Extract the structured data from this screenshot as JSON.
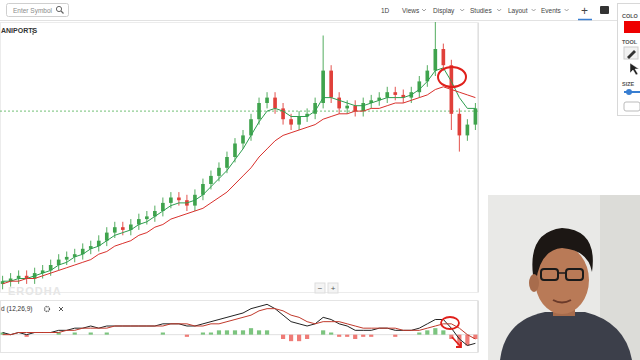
{
  "toolbar": {
    "search_placeholder": "Enter Symbol",
    "items": [
      "1D",
      "Views",
      "Display",
      "Studies",
      "Layout",
      "Events",
      "+"
    ]
  },
  "drawing_panel": {
    "labels": [
      "COLO",
      "TOOL",
      "SIZE"
    ]
  },
  "zoom_controls": [
    "−",
    "+"
  ],
  "chart_data": [
    {
      "type": "candlestick",
      "title": "ANIPORTS",
      "watermark": "ERODHA",
      "ylim": [
        0,
        100
      ],
      "tick_labels": false,
      "price_line": 67,
      "open": [
        3,
        4,
        5,
        6,
        5,
        7,
        8,
        10,
        12,
        13,
        14,
        16,
        17,
        19,
        22,
        24,
        23,
        25,
        27,
        28,
        30,
        33,
        35,
        34,
        32,
        36,
        40,
        43,
        46,
        50,
        55,
        58,
        64,
        70,
        72,
        68,
        64,
        62,
        65,
        66,
        70,
        82,
        72,
        68,
        69,
        67,
        70,
        71,
        72,
        74,
        73,
        72,
        74,
        78,
        82,
        90,
        84,
        66,
        58,
        62
      ],
      "high": [
        6,
        7,
        8,
        8,
        9,
        10,
        12,
        14,
        15,
        16,
        18,
        19,
        21,
        24,
        26,
        26,
        27,
        29,
        30,
        32,
        35,
        37,
        37,
        36,
        38,
        42,
        45,
        48,
        52,
        57,
        60,
        66,
        72,
        74,
        74,
        70,
        66,
        67,
        68,
        72,
        95,
        84,
        74,
        71,
        71,
        72,
        73,
        74,
        76,
        76,
        75,
        76,
        80,
        84,
        100,
        92,
        86,
        68,
        64,
        70
      ],
      "low": [
        1,
        2,
        3,
        3,
        3,
        5,
        6,
        8,
        10,
        11,
        12,
        14,
        15,
        17,
        20,
        21,
        21,
        23,
        25,
        26,
        28,
        31,
        32,
        30,
        30,
        34,
        38,
        41,
        44,
        48,
        53,
        56,
        62,
        68,
        66,
        62,
        60,
        60,
        63,
        64,
        68,
        70,
        66,
        66,
        65,
        65,
        68,
        69,
        70,
        71,
        70,
        70,
        72,
        76,
        80,
        82,
        60,
        52,
        56,
        60
      ],
      "close": [
        4,
        5,
        6,
        5,
        7,
        8,
        10,
        12,
        13,
        14,
        16,
        17,
        19,
        22,
        24,
        23,
        25,
        27,
        28,
        30,
        33,
        35,
        34,
        32,
        36,
        40,
        43,
        46,
        50,
        55,
        58,
        64,
        70,
        72,
        68,
        64,
        62,
        65,
        66,
        70,
        82,
        72,
        68,
        69,
        67,
        70,
        71,
        72,
        74,
        73,
        72,
        74,
        78,
        82,
        90,
        84,
        66,
        58,
        62,
        68
      ],
      "series": [
        {
          "type": "line",
          "color": "#2e9e4f",
          "values": [
            4,
            4,
            5,
            5,
            6,
            7,
            8,
            10,
            11,
            13,
            14,
            16,
            17,
            19,
            21,
            22,
            23,
            25,
            26,
            28,
            30,
            32,
            33,
            33,
            34,
            36,
            39,
            42,
            45,
            49,
            53,
            58,
            63,
            67,
            68,
            67,
            65,
            65,
            65,
            67,
            72,
            72,
            71,
            70,
            69,
            69,
            70,
            71,
            72,
            72,
            72,
            73,
            75,
            78,
            82,
            83,
            78,
            72,
            68,
            68
          ]
        },
        {
          "type": "line",
          "color": "#d9302c",
          "values": [
            3,
            4,
            4,
            5,
            5,
            6,
            7,
            8,
            9,
            10,
            11,
            12,
            14,
            15,
            17,
            18,
            19,
            21,
            22,
            24,
            25,
            27,
            28,
            29,
            30,
            31,
            33,
            35,
            37,
            40,
            43,
            46,
            50,
            53,
            56,
            58,
            59,
            60,
            61,
            62,
            64,
            65,
            66,
            66,
            67,
            67,
            68,
            68,
            69,
            70,
            70,
            71,
            72,
            73,
            75,
            76,
            75,
            74,
            73,
            72
          ]
        }
      ]
    },
    {
      "type": "macd",
      "title": "d (12,26,9)",
      "ylim": [
        -8,
        16
      ],
      "tick_labels": false,
      "series": [
        {
          "type": "line",
          "color": "#222222",
          "values": [
            1,
            0,
            1,
            0,
            1,
            1,
            1,
            2,
            2,
            3,
            3,
            4,
            3,
            4,
            4,
            4,
            4,
            4,
            4,
            4,
            5,
            5,
            5,
            4,
            4,
            5,
            6,
            7,
            8,
            9,
            10,
            12,
            13,
            14,
            12,
            9,
            6,
            5,
            4,
            5,
            8,
            7,
            5,
            4,
            2,
            2,
            2,
            3,
            3,
            2,
            2,
            2,
            3,
            5,
            7,
            7,
            3,
            -2,
            -5,
            -4
          ]
        },
        {
          "type": "line",
          "color": "#c0392b",
          "values": [
            0,
            0,
            1,
            1,
            1,
            1,
            1,
            1,
            2,
            2,
            3,
            3,
            3,
            3,
            4,
            4,
            4,
            4,
            4,
            4,
            4,
            5,
            5,
            5,
            4,
            4,
            5,
            5,
            6,
            7,
            8,
            9,
            11,
            12,
            12,
            11,
            9,
            8,
            6,
            5,
            6,
            6,
            6,
            5,
            4,
            3,
            3,
            3,
            3,
            3,
            2,
            2,
            2,
            3,
            4,
            5,
            5,
            3,
            0,
            -2
          ]
        },
        {
          "type": "bar",
          "values": [
            1,
            0,
            0,
            -1,
            0,
            0,
            0,
            1,
            0,
            1,
            0,
            1,
            0,
            1,
            0,
            0,
            0,
            0,
            0,
            0,
            1,
            0,
            0,
            -1,
            0,
            1,
            1,
            2,
            2,
            2,
            2,
            3,
            2,
            2,
            0,
            -2,
            -3,
            -3,
            -2,
            0,
            2,
            1,
            -1,
            -1,
            -2,
            -1,
            -1,
            0,
            0,
            -1,
            0,
            0,
            1,
            2,
            3,
            2,
            -2,
            -5,
            -5,
            -2
          ]
        }
      ]
    }
  ]
}
